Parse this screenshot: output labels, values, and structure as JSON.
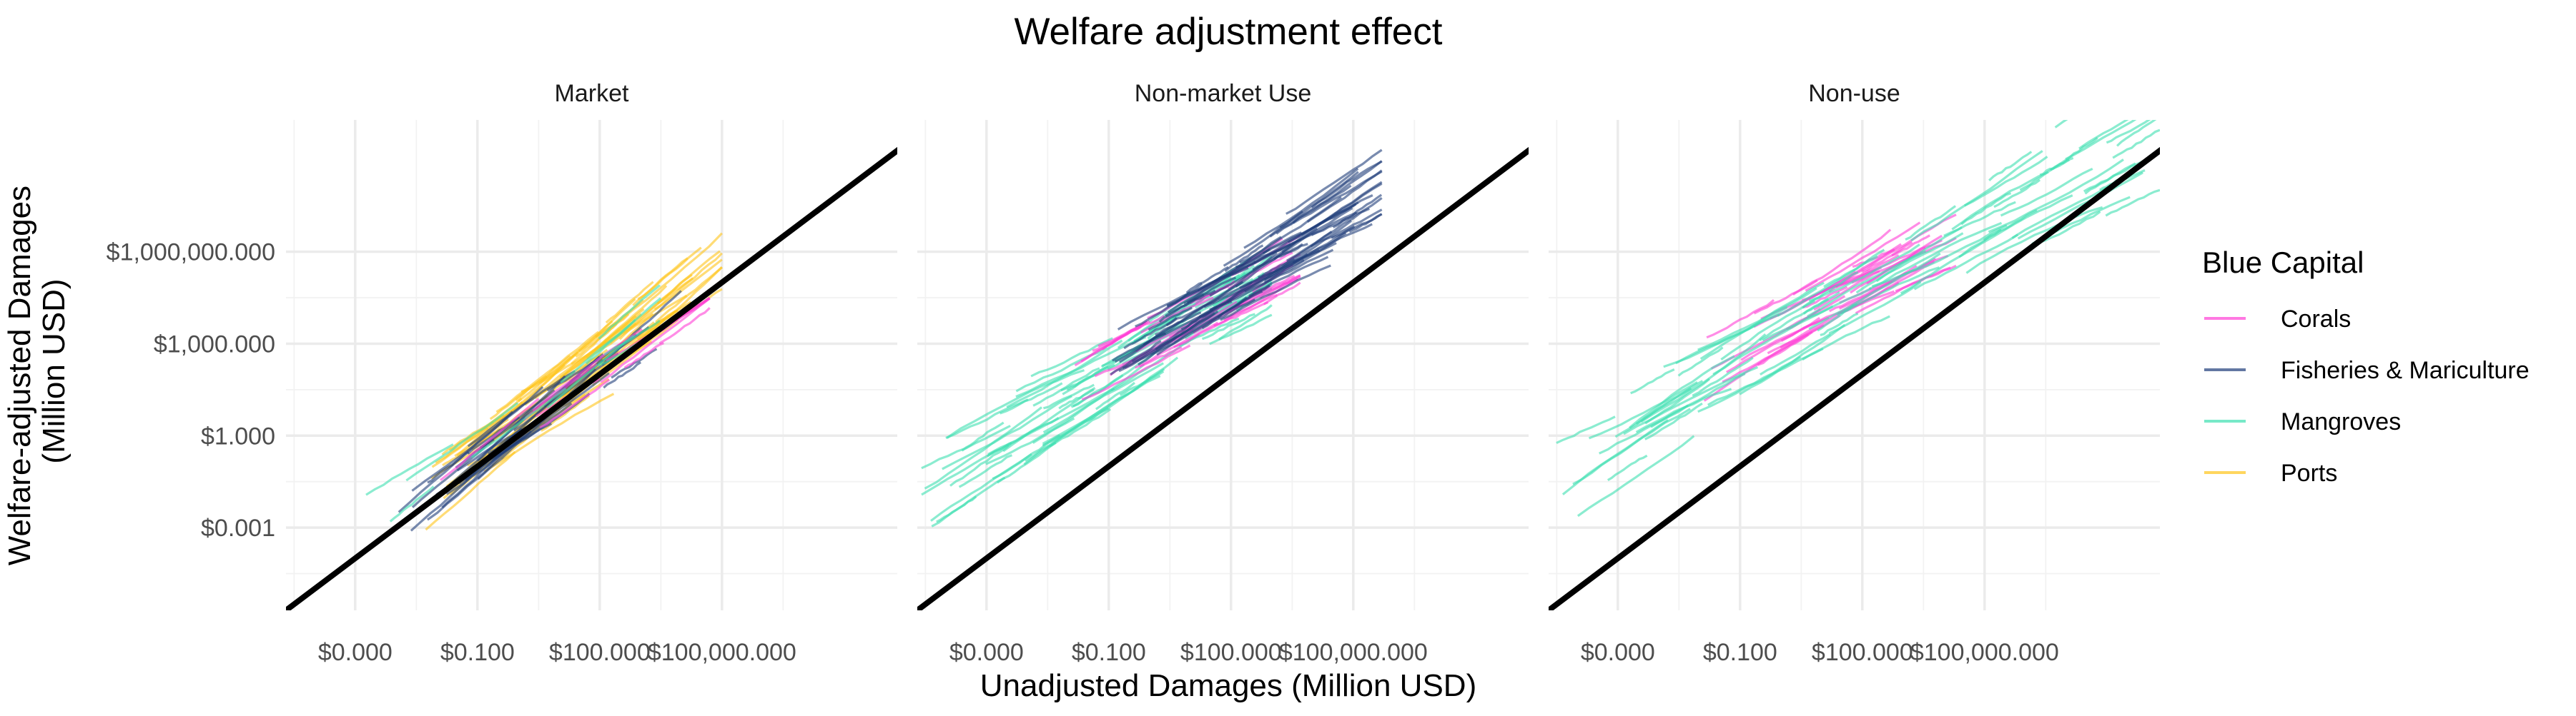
{
  "chart_data": {
    "type": "line",
    "title": "Welfare adjustment effect",
    "xlabel": "Unadjusted Damages (Million USD)",
    "ylabel": [
      "Welfare-adjusted Damages",
      "(Million USD)"
    ],
    "x_scale": "log10",
    "y_scale": "log10",
    "xlim": [
      2e-06,
      2000000000
    ],
    "ylim": [
      2e-06,
      20000000000
    ],
    "x_ticks": [
      {
        "value": 0.0001,
        "label": "$0.000"
      },
      {
        "value": 0.1,
        "label": "$0.100"
      },
      {
        "value": 100,
        "label": "$100.000"
      },
      {
        "value": 100000,
        "label": "$100,000.000"
      }
    ],
    "y_ticks": [
      {
        "value": 0.001,
        "label": "$0.001"
      },
      {
        "value": 1,
        "label": "$1.000"
      },
      {
        "value": 1000,
        "label": "$1,000.000"
      },
      {
        "value": 1000000,
        "label": "$1,000,000.000"
      }
    ],
    "reference_line": {
      "description": "y = x",
      "color": "#000000"
    },
    "grid": true,
    "legend": {
      "title": "Blue Capital",
      "position": "right",
      "entries": [
        {
          "name": "Corals",
          "color": "#ff3fd6"
        },
        {
          "name": "Fisheries & Mariculture",
          "color": "#1f3d7a"
        },
        {
          "name": "Mangroves",
          "color": "#3ddfb0"
        },
        {
          "name": "Ports",
          "color": "#ffc41a"
        }
      ]
    },
    "panels": [
      {
        "name": "Market",
        "series": [
          {
            "name": "Ports",
            "band": {
              "x_range": [
                0.005,
                100000
              ],
              "slope": 0.97,
              "offset": 0.4,
              "spread": 0.9
            },
            "n_lines": 70
          },
          {
            "name": "Fisheries & Mariculture",
            "band": {
              "x_range": [
                0.001,
                10000
              ],
              "slope": 1.0,
              "offset": 0.35,
              "spread": 0.6
            },
            "n_lines": 30
          },
          {
            "name": "Corals",
            "band": {
              "x_range": [
                0.01,
                50000
              ],
              "slope": 0.98,
              "offset": 0.2,
              "spread": 0.5
            },
            "n_lines": 12
          },
          {
            "name": "Mangroves",
            "band": {
              "x_range": [
                0.0001,
                5000
              ],
              "slope": 0.95,
              "offset": 0.6,
              "spread": 0.5
            },
            "n_lines": 10
          }
        ]
      },
      {
        "name": "Non-market Use",
        "series": [
          {
            "name": "Mangroves",
            "band": {
              "x_range": [
                2e-06,
                1000
              ],
              "slope": 0.75,
              "offset": 2.7,
              "spread": 1.1
            },
            "n_lines": 70
          },
          {
            "name": "Corals",
            "band": {
              "x_range": [
                0.01,
                5000
              ],
              "slope": 0.7,
              "offset": 3.0,
              "spread": 0.8
            },
            "n_lines": 30
          },
          {
            "name": "Fisheries & Mariculture",
            "band": {
              "x_range": [
                0.1,
                500000
              ],
              "slope": 0.75,
              "offset": 3.4,
              "spread": 0.9
            },
            "n_lines": 70
          }
        ]
      },
      {
        "name": "Non-use",
        "series": [
          {
            "name": "Corals",
            "band": {
              "x_range": [
                0.01,
                20000
              ],
              "slope": 0.7,
              "offset": 3.6,
              "spread": 0.9
            },
            "n_lines": 35
          },
          {
            "name": "Mangroves",
            "band": {
              "x_range": [
                2e-06,
                2000000000
              ],
              "slope": 0.75,
              "offset": 3.0,
              "spread": 1.2
            },
            "n_lines": 80
          }
        ]
      }
    ]
  }
}
